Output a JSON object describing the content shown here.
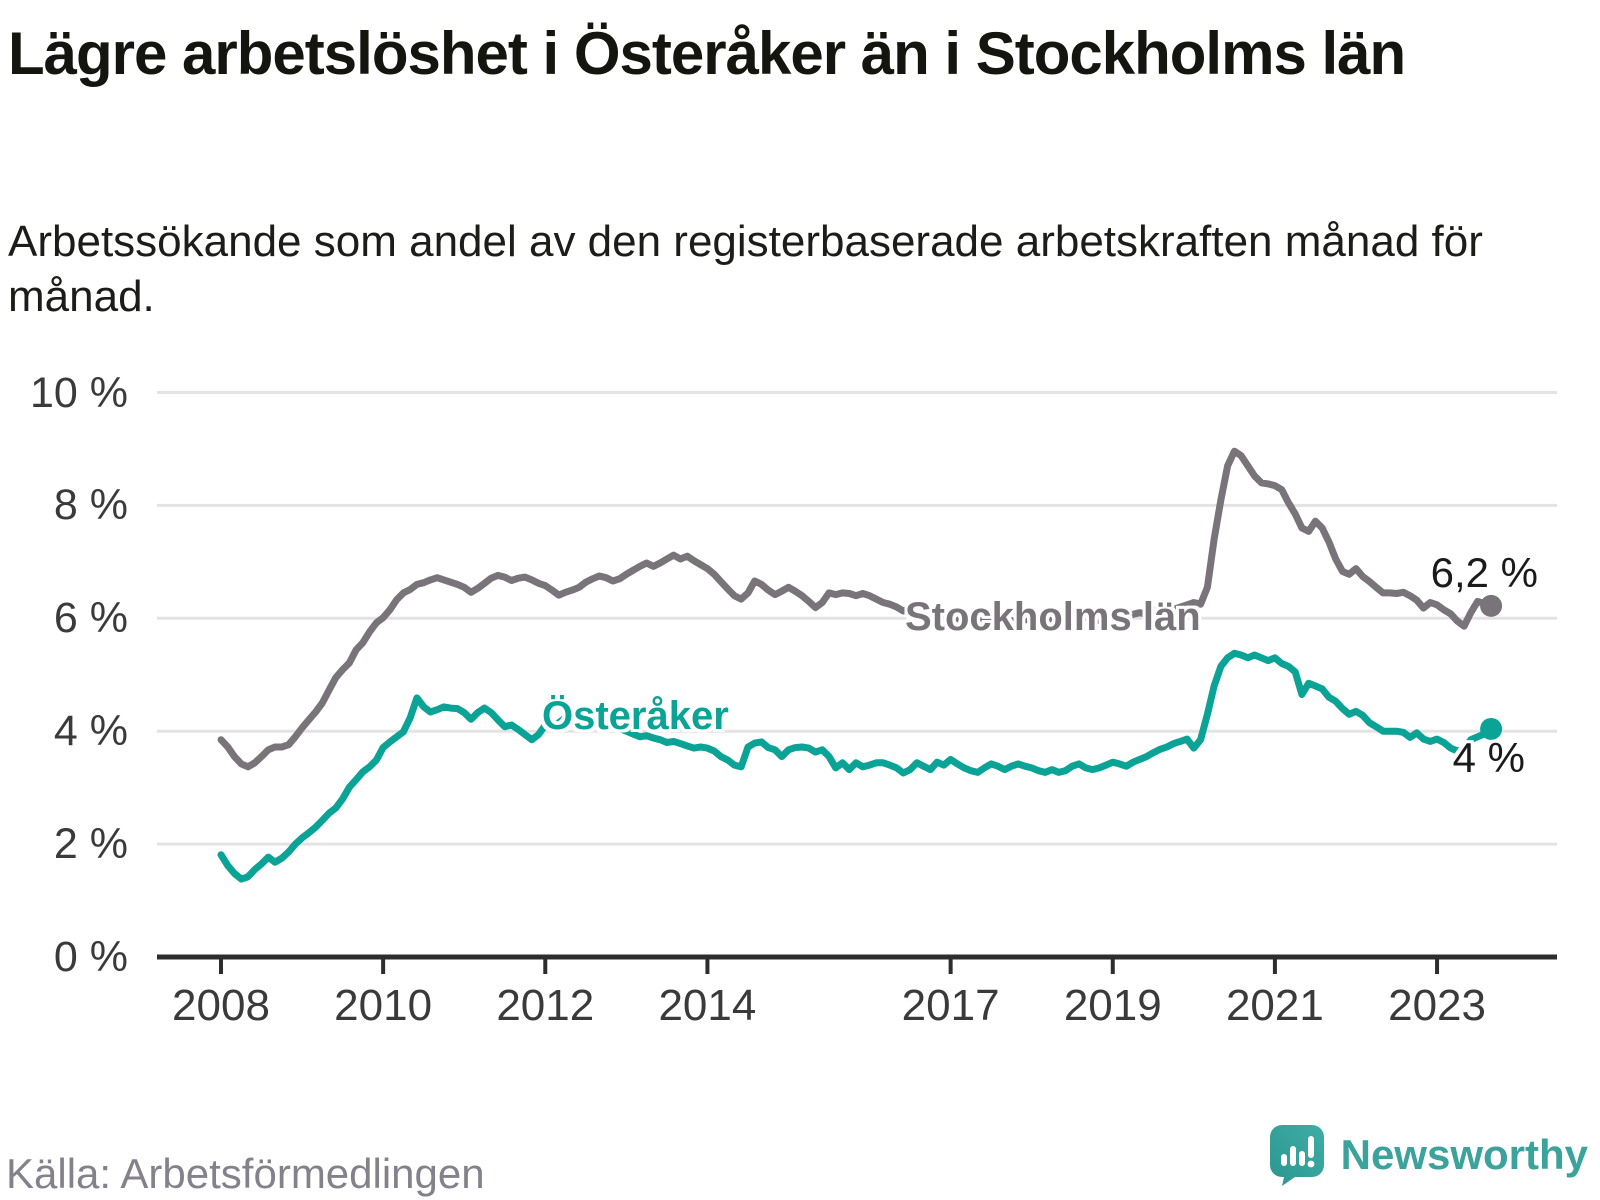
{
  "title": "Lägre arbetslöshet i Österåker än i Stockholms län",
  "subtitle": "Arbetssökande som andel av den registerbaserade arbetskraften månad för månad.",
  "source": "Källa: Arbetsförmedlingen",
  "branding": {
    "name": "Newsworthy",
    "logo_icon": "speech-bubble-bar-chart-icon",
    "text_color": "#3ca29c",
    "mark_color": "#2f9f98"
  },
  "colors": {
    "stockholm_line": "#797479",
    "osteraker_line": "#0aa396",
    "gridline": "#e3e3e3",
    "axis": "#2d2d2d",
    "axis_text": "#3a3a3a",
    "value_text": "#1a1a1a"
  },
  "chart_data": {
    "type": "line",
    "title": "Lägre arbetslöshet i Österåker än i Stockholms län",
    "xlabel": "",
    "ylabel": "Arbetssökande som andel av den registerbaserade arbetskraften",
    "unit": "%",
    "grid": "horizontal",
    "legend_position": "inline-labels",
    "xlim": [
      2007.2,
      2024.45
    ],
    "ylim": [
      0,
      10.6
    ],
    "x_start": 2008.0,
    "x_step": 0.0833,
    "frequency": "monthly",
    "x_axis": {
      "ticks": [
        {
          "value": 2008,
          "label": "2008"
        },
        {
          "value": 2010,
          "label": "2010"
        },
        {
          "value": 2012,
          "label": "2012"
        },
        {
          "value": 2014,
          "label": "2014"
        },
        {
          "value": 2017,
          "label": "2017"
        },
        {
          "value": 2019,
          "label": "2019"
        },
        {
          "value": 2021,
          "label": "2021"
        },
        {
          "value": 2023,
          "label": "2023"
        }
      ]
    },
    "y_axis": {
      "ticks": [
        {
          "value": 10,
          "label": "10 %"
        },
        {
          "value": 8,
          "label": "8 %"
        },
        {
          "value": 6,
          "label": "6 %"
        },
        {
          "value": 4,
          "label": "4 %"
        },
        {
          "value": 2,
          "label": "2 %"
        },
        {
          "value": 0,
          "label": "0 %"
        }
      ],
      "gridline_values": [
        2,
        4,
        6,
        8,
        10
      ]
    },
    "series": [
      {
        "name": "Stockholms län",
        "color": "#797479",
        "end_label": "6,2 %",
        "end_value": 6.2,
        "values": [
          3.85,
          3.72,
          3.55,
          3.42,
          3.37,
          3.44,
          3.55,
          3.67,
          3.72,
          3.72,
          3.76,
          3.9,
          4.06,
          4.2,
          4.34,
          4.5,
          4.73,
          4.95,
          5.09,
          5.21,
          5.44,
          5.57,
          5.76,
          5.92,
          6.01,
          6.15,
          6.33,
          6.45,
          6.51,
          6.6,
          6.63,
          6.68,
          6.72,
          6.68,
          6.64,
          6.6,
          6.55,
          6.46,
          6.53,
          6.62,
          6.71,
          6.76,
          6.73,
          6.67,
          6.71,
          6.73,
          6.68,
          6.62,
          6.58,
          6.5,
          6.41,
          6.46,
          6.5,
          6.55,
          6.64,
          6.7,
          6.75,
          6.72,
          6.66,
          6.7,
          6.78,
          6.85,
          6.92,
          6.98,
          6.92,
          6.98,
          7.05,
          7.12,
          7.05,
          7.1,
          7.02,
          6.95,
          6.88,
          6.78,
          6.65,
          6.52,
          6.4,
          6.34,
          6.45,
          6.66,
          6.6,
          6.5,
          6.42,
          6.48,
          6.55,
          6.48,
          6.4,
          6.3,
          6.19,
          6.28,
          6.45,
          6.42,
          6.45,
          6.44,
          6.4,
          6.44,
          6.4,
          6.34,
          6.28,
          6.25,
          6.2,
          6.13,
          6.18,
          6.22,
          6.15,
          6.1,
          6.05,
          6.02,
          6.0,
          5.97,
          6.02,
          6.05,
          6.0,
          5.96,
          6.0,
          6.04,
          6.0,
          5.96,
          5.93,
          5.97,
          6.0,
          5.96,
          5.92,
          5.97,
          6.02,
          5.98,
          5.94,
          5.99,
          6.03,
          5.99,
          5.96,
          6.0,
          6.02,
          6.06,
          6.02,
          6.07,
          6.1,
          6.07,
          6.12,
          6.15,
          6.12,
          6.16,
          6.2,
          6.24,
          6.28,
          6.25,
          6.55,
          7.4,
          8.1,
          8.7,
          8.96,
          8.88,
          8.7,
          8.52,
          8.4,
          8.38,
          8.35,
          8.28,
          8.05,
          7.85,
          7.6,
          7.54,
          7.72,
          7.6,
          7.35,
          7.05,
          6.83,
          6.78,
          6.88,
          6.74,
          6.65,
          6.55,
          6.45,
          6.45,
          6.44,
          6.46,
          6.4,
          6.32,
          6.18,
          6.28,
          6.24,
          6.15,
          6.08,
          5.95,
          5.86,
          6.1,
          6.3,
          6.26,
          6.22
        ]
      },
      {
        "name": "Österåker",
        "color": "#0aa396",
        "end_label": "4 %",
        "end_value": 4.0,
        "values": [
          1.81,
          1.62,
          1.48,
          1.38,
          1.42,
          1.55,
          1.65,
          1.77,
          1.68,
          1.75,
          1.86,
          2.0,
          2.11,
          2.2,
          2.3,
          2.42,
          2.55,
          2.64,
          2.8,
          3.01,
          3.14,
          3.28,
          3.37,
          3.49,
          3.71,
          3.81,
          3.9,
          3.99,
          4.24,
          4.59,
          4.43,
          4.34,
          4.38,
          4.43,
          4.41,
          4.4,
          4.33,
          4.21,
          4.33,
          4.41,
          4.33,
          4.2,
          4.08,
          4.11,
          4.03,
          3.94,
          3.85,
          3.94,
          4.11,
          4.06,
          4.15,
          4.24,
          4.29,
          4.3,
          4.28,
          4.25,
          4.2,
          4.15,
          4.1,
          4.05,
          4.0,
          3.95,
          3.9,
          3.92,
          3.88,
          3.85,
          3.8,
          3.82,
          3.78,
          3.74,
          3.7,
          3.72,
          3.7,
          3.65,
          3.55,
          3.49,
          3.4,
          3.37,
          3.72,
          3.79,
          3.81,
          3.71,
          3.67,
          3.55,
          3.67,
          3.71,
          3.72,
          3.7,
          3.63,
          3.67,
          3.55,
          3.35,
          3.44,
          3.32,
          3.44,
          3.37,
          3.4,
          3.44,
          3.44,
          3.4,
          3.35,
          3.26,
          3.32,
          3.44,
          3.38,
          3.32,
          3.45,
          3.4,
          3.5,
          3.42,
          3.35,
          3.3,
          3.27,
          3.35,
          3.42,
          3.38,
          3.32,
          3.38,
          3.42,
          3.38,
          3.35,
          3.3,
          3.27,
          3.32,
          3.27,
          3.3,
          3.38,
          3.42,
          3.35,
          3.32,
          3.35,
          3.4,
          3.45,
          3.42,
          3.38,
          3.45,
          3.5,
          3.55,
          3.62,
          3.68,
          3.72,
          3.78,
          3.82,
          3.86,
          3.7,
          3.85,
          4.3,
          4.8,
          5.15,
          5.3,
          5.38,
          5.35,
          5.3,
          5.35,
          5.3,
          5.25,
          5.3,
          5.2,
          5.15,
          5.05,
          4.65,
          4.85,
          4.8,
          4.75,
          4.6,
          4.53,
          4.4,
          4.3,
          4.35,
          4.28,
          4.15,
          4.08,
          4.0,
          4.0,
          4.0,
          3.98,
          3.89,
          3.97,
          3.86,
          3.82,
          3.86,
          3.8,
          3.7,
          3.65,
          3.68,
          3.85,
          3.9,
          3.95,
          4.04
        ]
      }
    ]
  }
}
